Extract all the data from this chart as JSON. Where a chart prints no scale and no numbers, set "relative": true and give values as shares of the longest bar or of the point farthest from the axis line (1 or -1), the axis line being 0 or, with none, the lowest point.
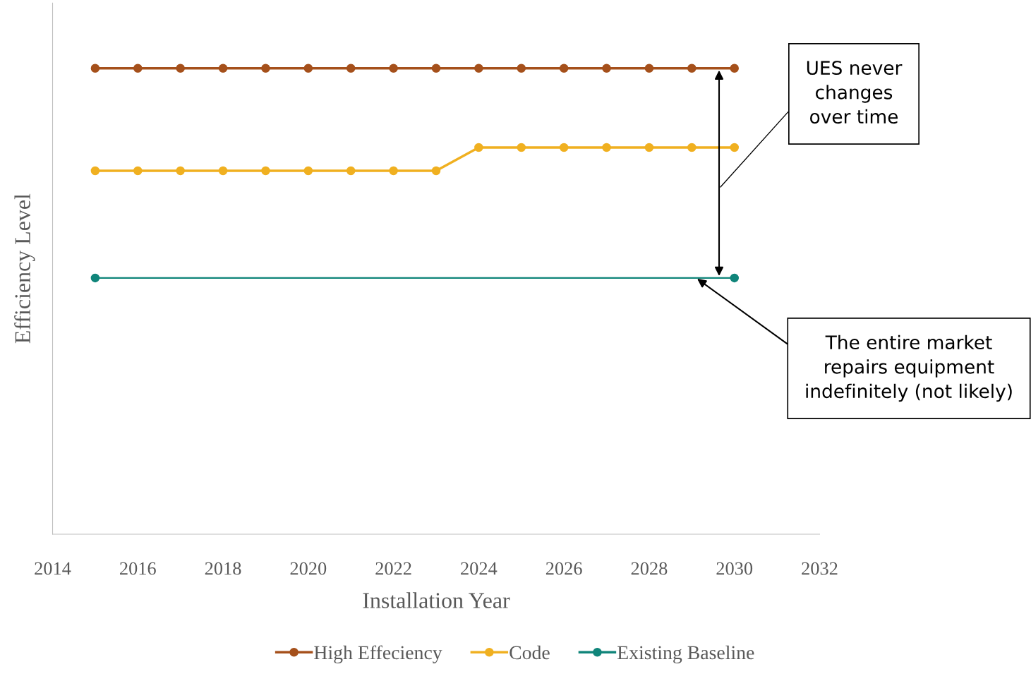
{
  "chart_data": {
    "type": "line",
    "xlabel": "Installation Year",
    "ylabel": "Efficiency Level",
    "relative": true,
    "marker": "circle",
    "legend": "bottom",
    "grid": false,
    "xlim": [
      2014,
      2032
    ],
    "xticks": [
      2014,
      2016,
      2018,
      2020,
      2022,
      2024,
      2026,
      2028,
      2030,
      2032
    ],
    "series": [
      {
        "name": "High Effeciency",
        "color": "#a5501b",
        "x": [
          2015,
          2016,
          2017,
          2018,
          2019,
          2020,
          2021,
          2022,
          2023,
          2024,
          2025,
          2026,
          2027,
          2028,
          2029,
          2030
        ],
        "values": [
          1,
          1,
          1,
          1,
          1,
          1,
          1,
          1,
          1,
          1,
          1,
          1,
          1,
          1,
          1,
          1
        ]
      },
      {
        "name": "Code",
        "color": "#f0b020",
        "x": [
          2015,
          2016,
          2017,
          2018,
          2019,
          2020,
          2021,
          2022,
          2023,
          2024,
          2025,
          2026,
          2027,
          2028,
          2029,
          2030
        ],
        "values": [
          0.78,
          0.78,
          0.78,
          0.78,
          0.78,
          0.78,
          0.78,
          0.78,
          0.78,
          0.83,
          0.83,
          0.83,
          0.83,
          0.83,
          0.83,
          0.83
        ]
      },
      {
        "name": "Existing Baseline",
        "color": "#10857a",
        "x": [
          2015,
          2030
        ],
        "values": [
          0.55,
          0.55
        ]
      }
    ],
    "annotations": [
      "UES never\nchanges\nover time",
      "The entire market\nrepairs equipment\nindefinitely (not likely)"
    ]
  }
}
